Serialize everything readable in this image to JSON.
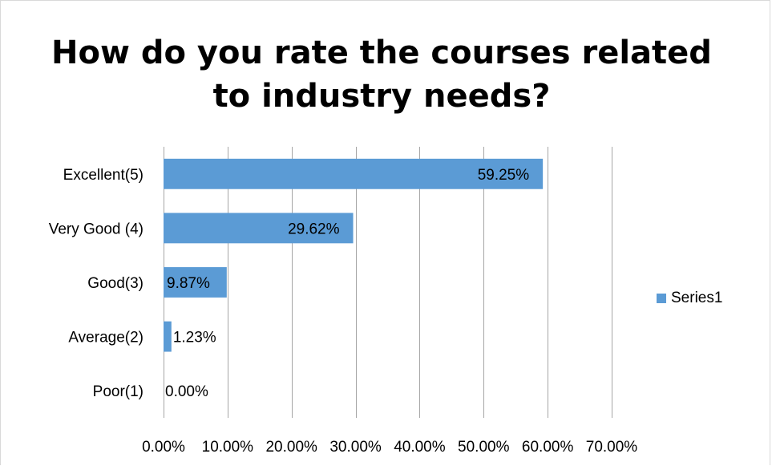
{
  "chart_data": {
    "type": "bar",
    "orientation": "horizontal",
    "title": "How do you rate the courses related\nto industry needs?",
    "categories": [
      "Excellent(5)",
      "Very Good (4)",
      "Good(3)",
      "Average(2)",
      "Poor(1)"
    ],
    "series": [
      {
        "name": "Series1",
        "values": [
          59.25,
          29.62,
          9.87,
          1.23,
          0.0
        ],
        "data_labels": [
          "59.25%",
          "29.62%",
          "9.87%",
          "1.23%",
          "0.00%"
        ],
        "color": "#5b9bd5"
      }
    ],
    "xlim": [
      0,
      70
    ],
    "x_ticks": [
      "0.00%",
      "10.00%",
      "20.00%",
      "30.00%",
      "40.00%",
      "50.00%",
      "60.00%",
      "70.00%"
    ],
    "xlabel": "",
    "ylabel": "",
    "grid": "vertical",
    "legend": "right"
  }
}
